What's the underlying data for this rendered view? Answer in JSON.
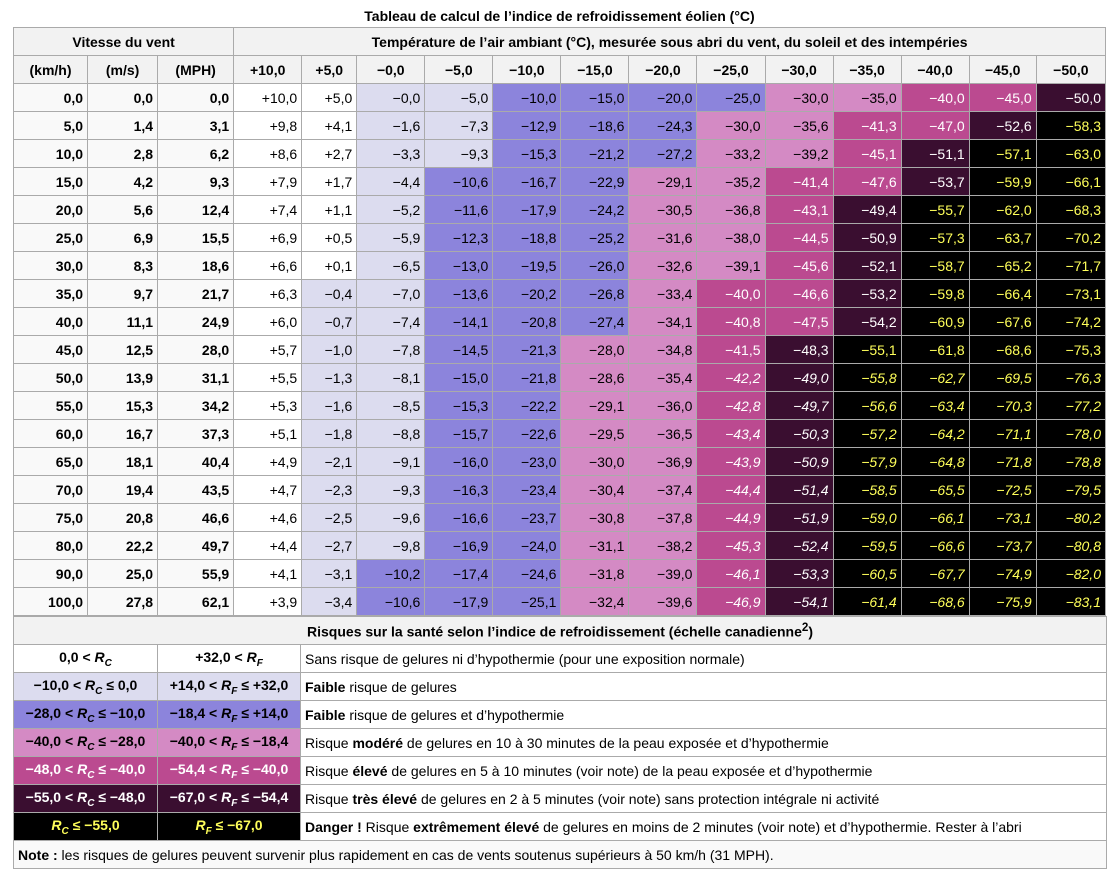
{
  "title": "Tableau de calcul de l’indice de refroidissement éolien (°C)",
  "header": {
    "speed_group": "Vitesse du vent",
    "temp_group": "Température de l’air ambiant (°C), mesurée sous abri du vent, du soleil et des intempéries",
    "unit_headers": [
      "(km/h)",
      "(m/s)",
      "(MPH)"
    ],
    "temps": [
      "+10,0",
      "+5,0",
      "−0,0",
      "−5,0",
      "−10,0",
      "−15,0",
      "−20,0",
      "−25,0",
      "−30,0",
      "−35,0",
      "−40,0",
      "−45,0",
      "−50,0"
    ]
  },
  "rows": [
    {
      "kmh": "0,0",
      "ms": "0,0",
      "mph": "0,0",
      "values": [
        "+10,0",
        "+5,0",
        "−0,0",
        "−5,0",
        "−10,0",
        "−15,0",
        "−20,0",
        "−25,0",
        "−30,0",
        "−35,0",
        "−40,0",
        "−45,0",
        "−50,0"
      ],
      "levels": [
        0,
        0,
        1,
        1,
        2,
        2,
        2,
        2,
        3,
        3,
        4,
        4,
        5
      ],
      "italic": [
        0,
        0,
        0,
        0,
        0,
        0,
        0,
        0,
        0,
        0,
        0,
        0,
        0
      ]
    },
    {
      "kmh": "5,0",
      "ms": "1,4",
      "mph": "3,1",
      "values": [
        "+9,8",
        "+4,1",
        "−1,6",
        "−7,3",
        "−12,9",
        "−18,6",
        "−24,3",
        "−30,0",
        "−35,6",
        "−41,3",
        "−47,0",
        "−52,6",
        "−58,3"
      ],
      "levels": [
        0,
        0,
        1,
        1,
        2,
        2,
        2,
        3,
        3,
        4,
        4,
        5,
        6
      ],
      "italic": [
        0,
        0,
        0,
        0,
        0,
        0,
        0,
        0,
        0,
        0,
        0,
        0,
        0
      ]
    },
    {
      "kmh": "10,0",
      "ms": "2,8",
      "mph": "6,2",
      "values": [
        "+8,6",
        "+2,7",
        "−3,3",
        "−9,3",
        "−15,3",
        "−21,2",
        "−27,2",
        "−33,2",
        "−39,2",
        "−45,1",
        "−51,1",
        "−57,1",
        "−63,0"
      ],
      "levels": [
        0,
        0,
        1,
        1,
        2,
        2,
        2,
        3,
        3,
        4,
        5,
        6,
        6
      ],
      "italic": [
        0,
        0,
        0,
        0,
        0,
        0,
        0,
        0,
        0,
        0,
        0,
        0,
        0
      ]
    },
    {
      "kmh": "15,0",
      "ms": "4,2",
      "mph": "9,3",
      "values": [
        "+7,9",
        "+1,7",
        "−4,4",
        "−10,6",
        "−16,7",
        "−22,9",
        "−29,1",
        "−35,2",
        "−41,4",
        "−47,6",
        "−53,7",
        "−59,9",
        "−66,1"
      ],
      "levels": [
        0,
        0,
        1,
        2,
        2,
        2,
        3,
        3,
        4,
        4,
        5,
        6,
        6
      ],
      "italic": [
        0,
        0,
        0,
        0,
        0,
        0,
        0,
        0,
        0,
        0,
        0,
        0,
        0
      ]
    },
    {
      "kmh": "20,0",
      "ms": "5,6",
      "mph": "12,4",
      "values": [
        "+7,4",
        "+1,1",
        "−5,2",
        "−11,6",
        "−17,9",
        "−24,2",
        "−30,5",
        "−36,8",
        "−43,1",
        "−49,4",
        "−55,7",
        "−62,0",
        "−68,3"
      ],
      "levels": [
        0,
        0,
        1,
        2,
        2,
        2,
        3,
        3,
        4,
        5,
        6,
        6,
        6
      ],
      "italic": [
        0,
        0,
        0,
        0,
        0,
        0,
        0,
        0,
        0,
        0,
        0,
        0,
        0
      ]
    },
    {
      "kmh": "25,0",
      "ms": "6,9",
      "mph": "15,5",
      "values": [
        "+6,9",
        "+0,5",
        "−5,9",
        "−12,3",
        "−18,8",
        "−25,2",
        "−31,6",
        "−38,0",
        "−44,5",
        "−50,9",
        "−57,3",
        "−63,7",
        "−70,2"
      ],
      "levels": [
        0,
        0,
        1,
        2,
        2,
        2,
        3,
        3,
        4,
        5,
        6,
        6,
        6
      ],
      "italic": [
        0,
        0,
        0,
        0,
        0,
        0,
        0,
        0,
        0,
        0,
        0,
        0,
        0
      ]
    },
    {
      "kmh": "30,0",
      "ms": "8,3",
      "mph": "18,6",
      "values": [
        "+6,6",
        "+0,1",
        "−6,5",
        "−13,0",
        "−19,5",
        "−26,0",
        "−32,6",
        "−39,1",
        "−45,6",
        "−52,1",
        "−58,7",
        "−65,2",
        "−71,7"
      ],
      "levels": [
        0,
        0,
        1,
        2,
        2,
        2,
        3,
        3,
        4,
        5,
        6,
        6,
        6
      ],
      "italic": [
        0,
        0,
        0,
        0,
        0,
        0,
        0,
        0,
        0,
        0,
        0,
        0,
        0
      ]
    },
    {
      "kmh": "35,0",
      "ms": "9,7",
      "mph": "21,7",
      "values": [
        "+6,3",
        "−0,4",
        "−7,0",
        "−13,6",
        "−20,2",
        "−26,8",
        "−33,4",
        "−40,0",
        "−46,6",
        "−53,2",
        "−59,8",
        "−66,4",
        "−73,1"
      ],
      "levels": [
        0,
        1,
        1,
        2,
        2,
        2,
        3,
        4,
        4,
        5,
        6,
        6,
        6
      ],
      "italic": [
        0,
        0,
        0,
        0,
        0,
        0,
        0,
        0,
        0,
        0,
        0,
        0,
        0
      ]
    },
    {
      "kmh": "40,0",
      "ms": "11,1",
      "mph": "24,9",
      "values": [
        "+6,0",
        "−0,7",
        "−7,4",
        "−14,1",
        "−20,8",
        "−27,4",
        "−34,1",
        "−40,8",
        "−47,5",
        "−54,2",
        "−60,9",
        "−67,6",
        "−74,2"
      ],
      "levels": [
        0,
        1,
        1,
        2,
        2,
        2,
        3,
        4,
        4,
        5,
        6,
        6,
        6
      ],
      "italic": [
        0,
        0,
        0,
        0,
        0,
        0,
        0,
        0,
        0,
        0,
        0,
        0,
        0
      ]
    },
    {
      "kmh": "45,0",
      "ms": "12,5",
      "mph": "28,0",
      "values": [
        "+5,7",
        "−1,0",
        "−7,8",
        "−14,5",
        "−21,3",
        "−28,0",
        "−34,8",
        "−41,5",
        "−48,3",
        "−55,1",
        "−61,8",
        "−68,6",
        "−75,3"
      ],
      "levels": [
        0,
        1,
        1,
        2,
        2,
        3,
        3,
        4,
        5,
        6,
        6,
        6,
        6
      ],
      "italic": [
        0,
        0,
        0,
        0,
        0,
        0,
        0,
        0,
        0,
        0,
        0,
        0,
        0
      ]
    },
    {
      "kmh": "50,0",
      "ms": "13,9",
      "mph": "31,1",
      "values": [
        "+5,5",
        "−1,3",
        "−8,1",
        "−15,0",
        "−21,8",
        "−28,6",
        "−35,4",
        "−42,2",
        "−49,0",
        "−55,8",
        "−62,7",
        "−69,5",
        "−76,3"
      ],
      "levels": [
        0,
        1,
        1,
        2,
        2,
        3,
        3,
        4,
        5,
        6,
        6,
        6,
        6
      ],
      "italic": [
        0,
        0,
        0,
        0,
        0,
        0,
        0,
        1,
        1,
        1,
        1,
        1,
        1
      ]
    },
    {
      "kmh": "55,0",
      "ms": "15,3",
      "mph": "34,2",
      "values": [
        "+5,3",
        "−1,6",
        "−8,5",
        "−15,3",
        "−22,2",
        "−29,1",
        "−36,0",
        "−42,8",
        "−49,7",
        "−56,6",
        "−63,4",
        "−70,3",
        "−77,2"
      ],
      "levels": [
        0,
        1,
        1,
        2,
        2,
        3,
        3,
        4,
        5,
        6,
        6,
        6,
        6
      ],
      "italic": [
        0,
        0,
        0,
        0,
        0,
        0,
        0,
        1,
        1,
        1,
        1,
        1,
        1
      ]
    },
    {
      "kmh": "60,0",
      "ms": "16,7",
      "mph": "37,3",
      "values": [
        "+5,1",
        "−1,8",
        "−8,8",
        "−15,7",
        "−22,6",
        "−29,5",
        "−36,5",
        "−43,4",
        "−50,3",
        "−57,2",
        "−64,2",
        "−71,1",
        "−78,0"
      ],
      "levels": [
        0,
        1,
        1,
        2,
        2,
        3,
        3,
        4,
        5,
        6,
        6,
        6,
        6
      ],
      "italic": [
        0,
        0,
        0,
        0,
        0,
        0,
        0,
        1,
        1,
        1,
        1,
        1,
        1
      ]
    },
    {
      "kmh": "65,0",
      "ms": "18,1",
      "mph": "40,4",
      "values": [
        "+4,9",
        "−2,1",
        "−9,1",
        "−16,0",
        "−23,0",
        "−30,0",
        "−36,9",
        "−43,9",
        "−50,9",
        "−57,9",
        "−64,8",
        "−71,8",
        "−78,8"
      ],
      "levels": [
        0,
        1,
        1,
        2,
        2,
        3,
        3,
        4,
        5,
        6,
        6,
        6,
        6
      ],
      "italic": [
        0,
        0,
        0,
        0,
        0,
        0,
        0,
        1,
        1,
        1,
        1,
        1,
        1
      ]
    },
    {
      "kmh": "70,0",
      "ms": "19,4",
      "mph": "43,5",
      "values": [
        "+4,7",
        "−2,3",
        "−9,3",
        "−16,3",
        "−23,4",
        "−30,4",
        "−37,4",
        "−44,4",
        "−51,4",
        "−58,5",
        "−65,5",
        "−72,5",
        "−79,5"
      ],
      "levels": [
        0,
        1,
        1,
        2,
        2,
        3,
        3,
        4,
        5,
        6,
        6,
        6,
        6
      ],
      "italic": [
        0,
        0,
        0,
        0,
        0,
        0,
        0,
        1,
        1,
        1,
        1,
        1,
        1
      ]
    },
    {
      "kmh": "75,0",
      "ms": "20,8",
      "mph": "46,6",
      "values": [
        "+4,6",
        "−2,5",
        "−9,6",
        "−16,6",
        "−23,7",
        "−30,8",
        "−37,8",
        "−44,9",
        "−51,9",
        "−59,0",
        "−66,1",
        "−73,1",
        "−80,2"
      ],
      "levels": [
        0,
        1,
        1,
        2,
        2,
        3,
        3,
        4,
        5,
        6,
        6,
        6,
        6
      ],
      "italic": [
        0,
        0,
        0,
        0,
        0,
        0,
        0,
        1,
        1,
        1,
        1,
        1,
        1
      ]
    },
    {
      "kmh": "80,0",
      "ms": "22,2",
      "mph": "49,7",
      "values": [
        "+4,4",
        "−2,7",
        "−9,8",
        "−16,9",
        "−24,0",
        "−31,1",
        "−38,2",
        "−45,3",
        "−52,4",
        "−59,5",
        "−66,6",
        "−73,7",
        "−80,8"
      ],
      "levels": [
        0,
        1,
        1,
        2,
        2,
        3,
        3,
        4,
        5,
        6,
        6,
        6,
        6
      ],
      "italic": [
        0,
        0,
        0,
        0,
        0,
        0,
        0,
        1,
        1,
        1,
        1,
        1,
        1
      ]
    },
    {
      "kmh": "90,0",
      "ms": "25,0",
      "mph": "55,9",
      "values": [
        "+4,1",
        "−3,1",
        "−10,2",
        "−17,4",
        "−24,6",
        "−31,8",
        "−39,0",
        "−46,1",
        "−53,3",
        "−60,5",
        "−67,7",
        "−74,9",
        "−82,0"
      ],
      "levels": [
        0,
        1,
        2,
        2,
        2,
        3,
        3,
        4,
        5,
        6,
        6,
        6,
        6
      ],
      "italic": [
        0,
        0,
        0,
        0,
        0,
        0,
        0,
        1,
        1,
        1,
        1,
        1,
        1
      ]
    },
    {
      "kmh": "100,0",
      "ms": "27,8",
      "mph": "62,1",
      "values": [
        "+3,9",
        "−3,4",
        "−10,6",
        "−17,9",
        "−25,1",
        "−32,4",
        "−39,6",
        "−46,9",
        "−54,1",
        "−61,4",
        "−68,6",
        "−75,9",
        "−83,1"
      ],
      "levels": [
        0,
        1,
        2,
        2,
        2,
        3,
        3,
        4,
        5,
        6,
        6,
        6,
        6
      ],
      "italic": [
        0,
        0,
        0,
        0,
        0,
        0,
        0,
        1,
        1,
        1,
        1,
        1,
        1
      ]
    }
  ],
  "risk": {
    "title": "Risques sur la santé selon l’indice de refroidissement (échelle canadienne",
    "title_sup": "2",
    "title_end": ")",
    "levels": [
      {
        "rc": "0,0 < RC",
        "rf": "+32,0 < RF",
        "bold": "",
        "text": "Sans risque de gelures ni d’hypothermie (pour une exposition normale)",
        "prefix": ""
      },
      {
        "rc": "−10,0 < RC ≤ 0,0",
        "rf": "+14,0 < RF ≤ +32,0",
        "prefix": "",
        "bold": "Faible",
        "text": " risque de gelures"
      },
      {
        "rc": "−28,0 < RC ≤ −10,0",
        "rf": "−18,4 < RF ≤ +14,0",
        "prefix": "",
        "bold": "Faible",
        "text": " risque de gelures et d’hypothermie"
      },
      {
        "rc": "−40,0 < RC ≤ −28,0",
        "rf": "−40,0 < RF ≤ −18,4",
        "prefix": "Risque ",
        "bold": "modéré",
        "text": " de gelures en 10 à 30 minutes de la peau exposée et d’hypothermie"
      },
      {
        "rc": "−48,0 < RC ≤ −40,0",
        "rf": "−54,4 < RF ≤ −40,0",
        "prefix": "Risque ",
        "bold": "élevé",
        "text": " de gelures en 5 à 10 minutes (voir note) de la peau exposée et d’hypothermie"
      },
      {
        "rc": "−55,0 < RC ≤ −48,0",
        "rf": "−67,0 < RF ≤ −54,4",
        "prefix": "Risque ",
        "bold": "très élevé",
        "text": " de gelures en 2 à 5 minutes (voir note) sans protection intégrale ni activité"
      },
      {
        "rc": "RC ≤ −55,0",
        "rf": "RF ≤ −67,0",
        "prefix": "",
        "bold": "Danger !",
        "text": " Risque extrêmement élevé de gelures en moins de 2 minutes (voir note) et d’hypothermie. Rester à l’abri"
      }
    ],
    "note_label": "Note :",
    "note_text": " les risques de gelures peuvent survenir plus rapidement en cas de vents soutenus supérieurs à 50 km/h (31 MPH)."
  }
}
